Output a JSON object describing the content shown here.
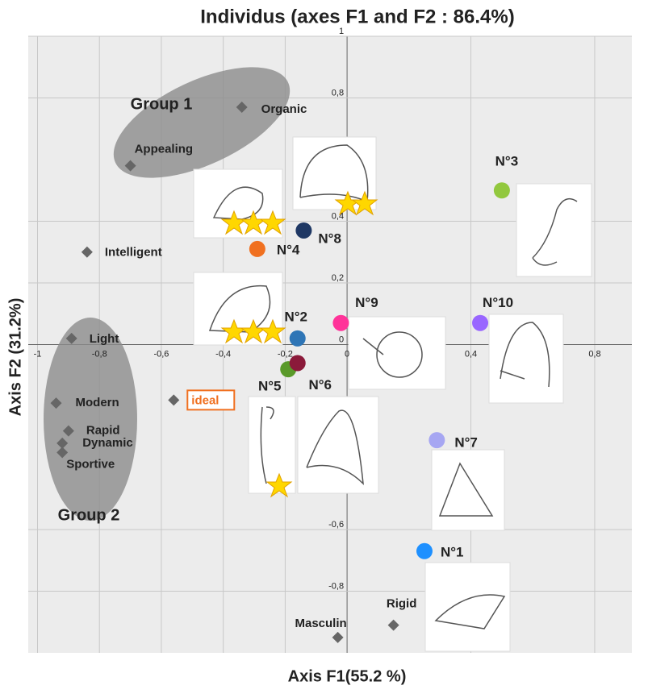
{
  "chart_data": {
    "type": "scatter",
    "title": "Individus (axes F1 and F2 : 86.4%)",
    "x_label": "Axis F1(55.2 %)",
    "y_label": "Axis  F2 (31.2%)",
    "xlim": [
      -1.03,
      0.92
    ],
    "ylim": [
      -1,
      1
    ],
    "xticks": [
      {
        "value": -1,
        "label": "-1"
      },
      {
        "value": -0.8,
        "label": "-0,8"
      },
      {
        "value": -0.6,
        "label": "-0,6"
      },
      {
        "value": -0.4,
        "label": "-0,4"
      },
      {
        "value": -0.2,
        "label": "-0,2"
      },
      0,
      {
        "value": 0.4,
        "label": "0,4"
      },
      {
        "value": 0.8,
        "label": "0,8"
      }
    ],
    "yticks": [
      1,
      {
        "value": 0.8,
        "label": "0,8"
      },
      {
        "value": 0.4,
        "label": "0,4"
      },
      {
        "value": 0.2,
        "label": "0,2"
      },
      0,
      {
        "value": -0.6,
        "label": "-0,6"
      },
      {
        "value": -0.8,
        "label": "-0,8"
      }
    ],
    "grid": true,
    "variables": {
      "color": "#666666",
      "labels": [
        "Organic",
        "Appealing",
        "Intelligent",
        "Light",
        "Modern",
        "Rapid",
        "Dynamic",
        "Sportive",
        "ideal",
        "Masculin",
        "Rigid"
      ],
      "x": [
        -0.34,
        -0.7,
        -0.84,
        -0.89,
        -0.94,
        -0.9,
        -0.92,
        -0.92,
        -0.56,
        -0.03,
        0.15
      ],
      "y": [
        0.77,
        0.58,
        0.3,
        0.02,
        -0.19,
        -0.28,
        -0.32,
        -0.35,
        -0.18,
        -0.95,
        -0.91
      ]
    },
    "products": {
      "labels": [
        "N°3",
        "N°8",
        "N°4",
        "N°2",
        "N°9",
        "N°10",
        "N°5",
        "N°6",
        "N°7",
        "N°1"
      ],
      "x": [
        0.5,
        -0.14,
        -0.29,
        -0.16,
        -0.02,
        0.43,
        -0.19,
        -0.16,
        0.29,
        0.25
      ],
      "y": [
        0.5,
        0.37,
        0.31,
        0.02,
        0.07,
        0.07,
        -0.08,
        -0.06,
        -0.31,
        -0.67
      ],
      "colors": [
        "#92c83e",
        "#1f3864",
        "#f07020",
        "#2e75b6",
        "#ff3399",
        "#9966ff",
        "#5a9a2a",
        "#8b1a3a",
        "#a6a6f2",
        "#1e90ff"
      ]
    },
    "annotations": [
      "Group 1",
      "Group 2"
    ]
  }
}
